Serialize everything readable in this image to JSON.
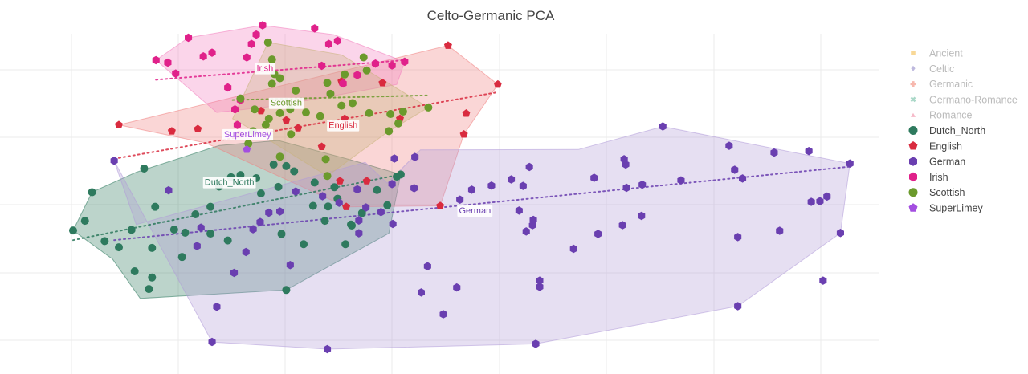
{
  "chart_data": {
    "type": "scatter",
    "title": "Celto-Germanic PCA",
    "xlabel": "",
    "ylabel": "",
    "xlim": [
      0,
      1000
    ],
    "ylim": [
      0,
      1000
    ],
    "grid": true,
    "legend_position": "right",
    "legend": [
      {
        "name": "Ancient",
        "symbol": "square",
        "color": "#f5c76b",
        "muted": true
      },
      {
        "name": "Celtic",
        "symbol": "diamond",
        "color": "#a39bd0",
        "muted": true
      },
      {
        "name": "Germanic",
        "symbol": "cross",
        "color": "#f39a8c",
        "muted": true
      },
      {
        "name": "Germano-Romance",
        "symbol": "x",
        "color": "#86c7b1",
        "muted": true
      },
      {
        "name": "Romance",
        "symbol": "triangle",
        "color": "#f29bb1",
        "muted": true
      },
      {
        "name": "Dutch_North",
        "symbol": "circle",
        "color": "#2e7a5e",
        "muted": false
      },
      {
        "name": "English",
        "symbol": "pentagon",
        "color": "#d92b3f",
        "muted": false
      },
      {
        "name": "German",
        "symbol": "hexagon",
        "color": "#6a3fb0",
        "muted": false
      },
      {
        "name": "Irish",
        "symbol": "hexagon",
        "color": "#e0218a",
        "muted": false
      },
      {
        "name": "Scottish",
        "symbol": "circle",
        "color": "#6b9a2c",
        "muted": false
      },
      {
        "name": "SuperLimey",
        "symbol": "pentagon",
        "color": "#a34ee0",
        "muted": false
      }
    ],
    "series": [
      {
        "name": "Dutch_North",
        "label": "Dutch_North",
        "color": "#2e7a5e",
        "fill": "#2e7a5e",
        "symbol": "circle",
        "label_at": [
          198,
          537
        ],
        "trend": [
          [
            0,
            350
          ],
          [
            415,
            561
          ]
        ],
        "hull": [
          [
            0,
            381
          ],
          [
            24,
            504
          ],
          [
            80,
            568
          ],
          [
            185,
            654
          ],
          [
            260,
            670
          ],
          [
            353,
            607
          ],
          [
            415,
            561
          ],
          [
            400,
            372
          ],
          [
            270,
            190
          ],
          [
            85,
            163
          ],
          [
            50,
            289
          ]
        ],
        "points": [
          [
            0,
            381
          ],
          [
            15,
            412
          ],
          [
            24,
            504
          ],
          [
            40,
            347
          ],
          [
            90,
            580
          ],
          [
            58,
            327
          ],
          [
            74,
            383
          ],
          [
            78,
            250
          ],
          [
            96,
            193
          ],
          [
            100,
            230
          ],
          [
            100,
            325
          ],
          [
            104,
            457
          ],
          [
            128,
            384
          ],
          [
            138,
            296
          ],
          [
            142,
            374
          ],
          [
            155,
            433
          ],
          [
            174,
            371
          ],
          [
            185,
            522
          ],
          [
            200,
            552
          ],
          [
            212,
            559
          ],
          [
            232,
            549
          ],
          [
            260,
            521
          ],
          [
            306,
            535
          ],
          [
            331,
            520
          ],
          [
            323,
            458
          ],
          [
            335,
            483
          ],
          [
            280,
            571
          ],
          [
            270,
            588
          ],
          [
            254,
            593
          ],
          [
            238,
            500
          ],
          [
            196,
            349
          ],
          [
            174,
            457
          ],
          [
            292,
            337
          ],
          [
            319,
            412
          ],
          [
            352,
            400
          ],
          [
            385,
            511
          ],
          [
            410,
            554
          ],
          [
            415,
            561
          ],
          [
            398,
            462
          ],
          [
            366,
            437
          ],
          [
            353,
            397
          ],
          [
            345,
            337
          ],
          [
            304,
            460
          ],
          [
            270,
            190
          ],
          [
            264,
            370
          ]
        ]
      },
      {
        "name": "English",
        "label": "English",
        "color": "#d92b3f",
        "fill": "#f08080",
        "symbol": "pentagon",
        "label_at": [
          342,
          720
        ],
        "trend": [
          [
            58,
            614
          ],
          [
            538,
            825
          ]
        ],
        "hull": [
          [
            58,
            720
          ],
          [
            475,
            975
          ],
          [
            538,
            850
          ],
          [
            495,
            690
          ],
          [
            465,
            460
          ],
          [
            346,
            457
          ],
          [
            168,
            662
          ]
        ],
        "points": [
          [
            58,
            720
          ],
          [
            125,
            700
          ],
          [
            158,
            707
          ],
          [
            210,
            690
          ],
          [
            238,
            765
          ],
          [
            270,
            735
          ],
          [
            285,
            710
          ],
          [
            315,
            650
          ],
          [
            338,
            540
          ],
          [
            372,
            540
          ],
          [
            344,
            740
          ],
          [
            340,
            860
          ],
          [
            392,
            855
          ],
          [
            414,
            740
          ],
          [
            346,
            457
          ],
          [
            465,
            460
          ],
          [
            495,
            690
          ],
          [
            498,
            757
          ],
          [
            538,
            850
          ],
          [
            475,
            975
          ]
        ]
      },
      {
        "name": "German",
        "label": "German",
        "color": "#6a3fb0",
        "fill": "#b09ad8",
        "symbol": "hexagon",
        "label_at": [
          509,
          446
        ],
        "trend": [
          [
            52,
            350
          ],
          [
            984,
            586
          ]
        ],
        "hull": [
          [
            52,
            605
          ],
          [
            176,
            23
          ],
          [
            322,
            0
          ],
          [
            586,
            17
          ],
          [
            842,
            138
          ],
          [
            972,
            373
          ],
          [
            984,
            596
          ],
          [
            747,
            715
          ],
          [
            640,
            641
          ],
          [
            440,
            640
          ],
          [
            398,
            533
          ],
          [
            370,
            600
          ],
          [
            80,
            400
          ]
        ],
        "points": [
          [
            52,
            605
          ],
          [
            121,
            510
          ],
          [
            157,
            331
          ],
          [
            162,
            390
          ],
          [
            176,
            23
          ],
          [
            182,
            136
          ],
          [
            204,
            245
          ],
          [
            219,
            312
          ],
          [
            228,
            385
          ],
          [
            237,
            408
          ],
          [
            248,
            438
          ],
          [
            275,
            270
          ],
          [
            262,
            442
          ],
          [
            282,
            506
          ],
          [
            316,
            491
          ],
          [
            322,
            0
          ],
          [
            337,
            470
          ],
          [
            362,
            372
          ],
          [
            362,
            413
          ],
          [
            371,
            455
          ],
          [
            360,
            513
          ],
          [
            390,
            440
          ],
          [
            404,
            530
          ],
          [
            407,
            612
          ],
          [
            432,
            517
          ],
          [
            441,
            182
          ],
          [
            405,
            402
          ],
          [
            433,
            617
          ],
          [
            449,
            266
          ],
          [
            469,
            112
          ],
          [
            486,
            198
          ],
          [
            490,
            480
          ],
          [
            505,
            512
          ],
          [
            530,
            525
          ],
          [
            555,
            545
          ],
          [
            570,
            524
          ],
          [
            565,
            445
          ],
          [
            578,
            585
          ],
          [
            582,
            398
          ],
          [
            586,
            17
          ],
          [
            591,
            220
          ],
          [
            591,
            200
          ],
          [
            574,
            378
          ],
          [
            583,
            415
          ],
          [
            634,
            322
          ],
          [
            665,
            370
          ],
          [
            696,
            398
          ],
          [
            700,
            593
          ],
          [
            698,
            610
          ],
          [
            701,
            518
          ],
          [
            721,
            528
          ],
          [
            747,
            715
          ],
          [
            770,
            542
          ],
          [
            842,
            138
          ],
          [
            831,
            653
          ],
          [
            842,
            360
          ],
          [
            838,
            576
          ],
          [
            848,
            548
          ],
          [
            888,
            631
          ],
          [
            932,
            636
          ],
          [
            935,
            473
          ],
          [
            946,
            475
          ],
          [
            972,
            373
          ],
          [
            955,
            490
          ],
          [
            984,
            596
          ],
          [
            950,
            220
          ],
          [
            895,
            380
          ],
          [
            660,
            550
          ],
          [
            720,
            428
          ]
        ]
      },
      {
        "name": "Irish",
        "label": "Irish",
        "color": "#e0218a",
        "fill": "#f37dbd",
        "symbol": "hexagon",
        "label_at": [
          243,
          903
        ],
        "trend": [
          [
            105,
            865
          ],
          [
            420,
            928
          ]
        ],
        "hull": [
          [
            105,
            928
          ],
          [
            146,
            1000
          ],
          [
            240,
            1040
          ],
          [
            330,
            1010
          ],
          [
            420,
            923
          ],
          [
            410,
            850
          ],
          [
            260,
            782
          ],
          [
            182,
            760
          ]
        ],
        "points": [
          [
            105,
            928
          ],
          [
            120,
            920
          ],
          [
            130,
            885
          ],
          [
            146,
            1000
          ],
          [
            165,
            940
          ],
          [
            176,
            952
          ],
          [
            220,
            937
          ],
          [
            226,
            980
          ],
          [
            240,
            1040
          ],
          [
            232,
            1010
          ],
          [
            306,
            1030
          ],
          [
            315,
            910
          ],
          [
            324,
            980
          ],
          [
            335,
            990
          ],
          [
            342,
            853
          ],
          [
            360,
            880
          ],
          [
            383,
            917
          ],
          [
            404,
            911
          ],
          [
            420,
            923
          ],
          [
            205,
            770
          ],
          [
            208,
            720
          ],
          [
            196,
            840
          ],
          [
            212,
            800
          ]
        ]
      },
      {
        "name": "Scottish",
        "label": "Scottish",
        "color": "#6b9a2c",
        "fill": "#c8b27a",
        "symbol": "circle",
        "label_at": [
          270,
          792
        ],
        "trend": [
          [
            202,
            800
          ],
          [
            450,
            815
          ]
        ],
        "hull": [
          [
            202,
            740
          ],
          [
            247,
            985
          ],
          [
            340,
            945
          ],
          [
            450,
            776
          ],
          [
            400,
            700
          ],
          [
            322,
            556
          ],
          [
            230,
            700
          ]
        ],
        "points": [
          [
            247,
            985
          ],
          [
            252,
            930
          ],
          [
            255,
            883
          ],
          [
            262,
            870
          ],
          [
            282,
            830
          ],
          [
            322,
            855
          ],
          [
            326,
            820
          ],
          [
            344,
            882
          ],
          [
            368,
            937
          ],
          [
            372,
            895
          ],
          [
            252,
            852
          ],
          [
            212,
            805
          ],
          [
            230,
            770
          ],
          [
            248,
            740
          ],
          [
            262,
            758
          ],
          [
            275,
            770
          ],
          [
            295,
            760
          ],
          [
            313,
            748
          ],
          [
            340,
            782
          ],
          [
            354,
            790
          ],
          [
            375,
            758
          ],
          [
            402,
            755
          ],
          [
            412,
            725
          ],
          [
            418,
            763
          ],
          [
            450,
            776
          ],
          [
            228,
            700
          ],
          [
            222,
            660
          ],
          [
            262,
            618
          ],
          [
            276,
            690
          ],
          [
            244,
            720
          ],
          [
            400,
            700
          ],
          [
            322,
            556
          ],
          [
            320,
            610
          ]
        ]
      },
      {
        "name": "SuperLimey",
        "label": "SuperLimey",
        "color": "#a34ee0",
        "fill": "#a34ee0",
        "symbol": "pentagon",
        "label_at": [
          221,
          691
        ],
        "trend": [],
        "hull": [],
        "points": [
          [
            220,
            641
          ]
        ]
      }
    ]
  }
}
